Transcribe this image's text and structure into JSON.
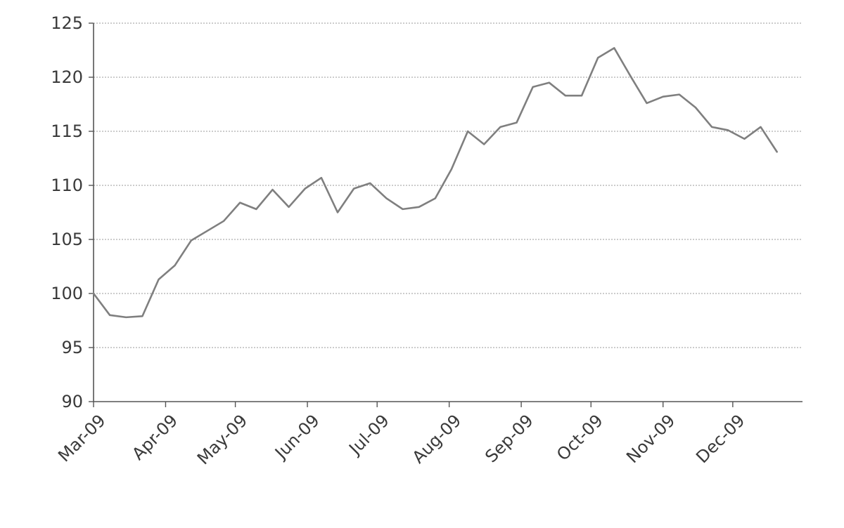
{
  "chart_data": {
    "type": "line",
    "title": "",
    "xlabel": "",
    "ylabel": "",
    "ylim": [
      90,
      125
    ],
    "yticks": [
      90,
      95,
      100,
      105,
      110,
      115,
      120,
      125
    ],
    "ytick_labels": [
      "90",
      "95",
      "100",
      "105",
      "110",
      "115",
      "120",
      "125"
    ],
    "xlim": [
      "2009-03-01",
      "2009-12-31"
    ],
    "xticks": [
      "2009-03-01",
      "2009-04-01",
      "2009-05-01",
      "2009-06-01",
      "2009-07-01",
      "2009-08-01",
      "2009-09-01",
      "2009-10-01",
      "2009-11-01",
      "2009-12-01"
    ],
    "xtick_labels": [
      "Mar-09",
      "Apr-09",
      "May-09",
      "Jun-09",
      "Jul-09",
      "Aug-09",
      "Sep-09",
      "Oct-09",
      "Nov-09",
      "Dec-09"
    ],
    "grid": true,
    "legend": "none",
    "colors": {
      "line": "#7f7f7f",
      "grid": "#9a9a9a",
      "axis": "#555555",
      "text": "#3a3a3a"
    },
    "series": [
      {
        "x": [
          "2009-03-01",
          "2009-03-08",
          "2009-03-15",
          "2009-03-22",
          "2009-03-29",
          "2009-04-05",
          "2009-04-12",
          "2009-04-19",
          "2009-04-26",
          "2009-05-03",
          "2009-05-10",
          "2009-05-17",
          "2009-05-24",
          "2009-05-31",
          "2009-06-07",
          "2009-06-14",
          "2009-06-21",
          "2009-06-28",
          "2009-07-05",
          "2009-07-12",
          "2009-07-19",
          "2009-07-26",
          "2009-08-02",
          "2009-08-09",
          "2009-08-16",
          "2009-08-23",
          "2009-08-30",
          "2009-09-06",
          "2009-09-13",
          "2009-09-20",
          "2009-09-27",
          "2009-10-04",
          "2009-10-11",
          "2009-10-18",
          "2009-10-25",
          "2009-11-01",
          "2009-11-08",
          "2009-11-15",
          "2009-11-22",
          "2009-11-29",
          "2009-12-06",
          "2009-12-13",
          "2009-12-20"
        ],
        "values": [
          100.0,
          98.0,
          97.8,
          97.9,
          101.3,
          102.6,
          104.9,
          105.8,
          106.7,
          108.4,
          107.8,
          109.6,
          108.0,
          109.7,
          110.7,
          107.5,
          109.7,
          110.2,
          108.8,
          107.8,
          108.0,
          108.8,
          111.5,
          115.0,
          113.8,
          115.4,
          115.8,
          119.1,
          119.5,
          118.3,
          118.3,
          121.8,
          122.7,
          120.1,
          117.6,
          118.2,
          118.4,
          117.2,
          115.4,
          115.1,
          114.3,
          115.4,
          113.1
        ]
      }
    ]
  }
}
